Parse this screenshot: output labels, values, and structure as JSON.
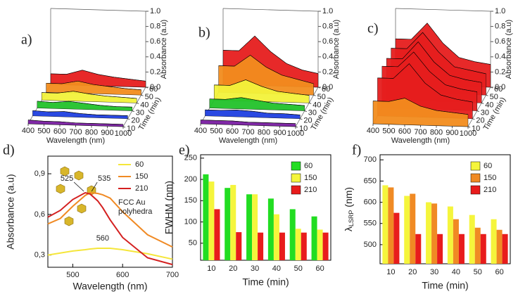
{
  "chart_data": [
    {
      "type": "waterfall3d",
      "panel_label": "a)",
      "xlabel": "Wavelength (nm)",
      "zlabel": "Time (min)",
      "ylabel": "Absorbance (a.u)",
      "x": [
        400,
        500,
        600,
        700,
        800,
        900,
        1000
      ],
      "xlim": [
        400,
        1000
      ],
      "xticks": [
        400,
        500,
        600,
        700,
        800,
        900,
        1000
      ],
      "zlim": [
        10,
        60
      ],
      "zticks": [
        10,
        20,
        30,
        40,
        50,
        60
      ],
      "ylim": [
        0,
        1
      ],
      "yticks": [
        {
          "value": 0,
          "label": "0.0"
        },
        {
          "value": 0.2,
          "label": "0.2"
        },
        {
          "value": 0.4,
          "label": "0.4"
        },
        {
          "value": 0.6,
          "label": "0.6"
        },
        {
          "value": 0.8,
          "label": "0.8"
        },
        {
          "value": 1,
          "label": "1.0"
        }
      ],
      "series": [
        {
          "color": "#7a1fa2",
          "values": [
            0.05,
            0.04,
            0.04,
            0.03,
            0.03,
            0.03,
            0.03
          ]
        },
        {
          "color": "#1f3fe0",
          "values": [
            0.07,
            0.06,
            0.07,
            0.05,
            0.04,
            0.04,
            0.04
          ]
        },
        {
          "color": "#22c22a",
          "values": [
            0.09,
            0.08,
            0.1,
            0.08,
            0.06,
            0.05,
            0.05
          ]
        },
        {
          "color": "#f2f23a",
          "values": [
            0.1,
            0.1,
            0.13,
            0.1,
            0.08,
            0.07,
            0.06
          ]
        },
        {
          "color": "#f28c1e",
          "values": [
            0.12,
            0.12,
            0.16,
            0.12,
            0.1,
            0.08,
            0.07
          ]
        },
        {
          "color": "#e61e1e",
          "values": [
            0.14,
            0.14,
            0.2,
            0.15,
            0.12,
            0.1,
            0.08
          ]
        }
      ]
    },
    {
      "type": "waterfall3d",
      "panel_label": "b)",
      "xlabel": "Wavelength (nm)",
      "zlabel": "Time (min)",
      "ylabel": "Absorbance (a.u)",
      "x": [
        400,
        500,
        600,
        700,
        800,
        900,
        1000
      ],
      "xlim": [
        400,
        1000
      ],
      "xticks": [
        400,
        500,
        600,
        700,
        800,
        900,
        1000
      ],
      "zlim": [
        10,
        60
      ],
      "zticks": [
        10,
        20,
        30,
        40,
        50,
        60
      ],
      "ylim": [
        0,
        1
      ],
      "yticks": [
        {
          "value": 0,
          "label": "0.0"
        },
        {
          "value": 0.2,
          "label": "0.2"
        },
        {
          "value": 0.4,
          "label": "0.4"
        },
        {
          "value": 0.6,
          "label": "0.6"
        },
        {
          "value": 0.8,
          "label": "0.8"
        },
        {
          "value": 1,
          "label": "1.0"
        }
      ],
      "series": [
        {
          "color": "#7a1fa2",
          "values": [
            0.05,
            0.05,
            0.05,
            0.04,
            0.04,
            0.04,
            0.04
          ]
        },
        {
          "color": "#1f3fe0",
          "values": [
            0.08,
            0.08,
            0.09,
            0.08,
            0.06,
            0.06,
            0.05
          ]
        },
        {
          "color": "#22c22a",
          "values": [
            0.12,
            0.12,
            0.15,
            0.12,
            0.09,
            0.08,
            0.07
          ]
        },
        {
          "color": "#f2f23a",
          "values": [
            0.2,
            0.2,
            0.28,
            0.2,
            0.14,
            0.12,
            0.1
          ]
        },
        {
          "color": "#f28c1e",
          "values": [
            0.35,
            0.35,
            0.5,
            0.35,
            0.25,
            0.2,
            0.15
          ]
        },
        {
          "color": "#e61e1e",
          "values": [
            0.45,
            0.45,
            0.65,
            0.45,
            0.3,
            0.22,
            0.18
          ]
        }
      ]
    },
    {
      "type": "waterfall3d",
      "panel_label": "c)",
      "xlabel": "Wavelength (nm)",
      "zlabel": "Time (min)",
      "ylabel": "Absorbance (a.u)",
      "x": [
        400,
        500,
        600,
        700,
        800,
        900,
        1000
      ],
      "xlim": [
        400,
        1000
      ],
      "xticks": [
        400,
        500,
        600,
        700,
        800,
        900,
        1000
      ],
      "zlim": [
        10,
        60
      ],
      "zticks": [
        10,
        20,
        30,
        40,
        50,
        60
      ],
      "ylim": [
        0,
        1
      ],
      "yticks": [
        {
          "value": 0,
          "label": "0.0"
        },
        {
          "value": 0.2,
          "label": "0.2"
        },
        {
          "value": 0.4,
          "label": "0.4"
        },
        {
          "value": 0.6,
          "label": "0.6"
        },
        {
          "value": 0.8,
          "label": "0.8"
        },
        {
          "value": 1,
          "label": "1.0"
        }
      ],
      "series": [
        {
          "color": "#f28c1e",
          "values": [
            0.3,
            0.3,
            0.35,
            0.25,
            0.2,
            0.18,
            0.16
          ]
        },
        {
          "color": "#e61e1e",
          "values": [
            0.5,
            0.5,
            0.7,
            0.45,
            0.3,
            0.25,
            0.22
          ]
        },
        {
          "color": "#e61e1e",
          "values": [
            0.55,
            0.55,
            0.75,
            0.5,
            0.33,
            0.28,
            0.25
          ]
        },
        {
          "color": "#e61e1e",
          "values": [
            0.55,
            0.55,
            0.78,
            0.52,
            0.35,
            0.3,
            0.27
          ]
        },
        {
          "color": "#e61e1e",
          "values": [
            0.58,
            0.58,
            0.8,
            0.55,
            0.36,
            0.32,
            0.28
          ]
        },
        {
          "color": "#e61e1e",
          "values": [
            0.6,
            0.6,
            0.82,
            0.56,
            0.38,
            0.33,
            0.3
          ]
        }
      ]
    },
    {
      "type": "line",
      "panel_label": "d)",
      "xlabel": "Wavelength (nm)",
      "ylabel": "Absorbance (a.u)",
      "x": [
        450,
        475,
        500,
        525,
        535,
        550,
        560,
        575,
        600,
        650,
        700
      ],
      "xlim": [
        450,
        700
      ],
      "xticks": [
        500,
        600,
        700
      ],
      "ylim": [
        0.21,
        1.03
      ],
      "yticks": [
        {
          "value": 0.3,
          "label": "0,3"
        },
        {
          "value": 0.6,
          "label": "0,6"
        },
        {
          "value": 0.9,
          "label": "0,9"
        }
      ],
      "annotations": [
        "525",
        "535",
        "560"
      ],
      "note": [
        "FCC Au",
        "polyhedra"
      ],
      "series": [
        {
          "name": "60",
          "color": "#f5e63a",
          "values": [
            0.3,
            0.315,
            0.33,
            0.34,
            0.345,
            0.35,
            0.35,
            0.35,
            0.34,
            0.31,
            0.27
          ]
        },
        {
          "name": "150",
          "color": "#f08a24",
          "values": [
            0.53,
            0.57,
            0.66,
            0.74,
            0.76,
            0.755,
            0.745,
            0.72,
            0.62,
            0.45,
            0.36
          ]
        },
        {
          "name": "210",
          "color": "#d42020",
          "values": [
            0.58,
            0.63,
            0.71,
            0.76,
            0.75,
            0.7,
            0.65,
            0.56,
            0.43,
            0.28,
            0.23
          ]
        }
      ]
    },
    {
      "type": "bar",
      "panel_label": "e)",
      "xlabel": "Time (min)",
      "ylabel": "FWHM (nm)",
      "categories": [
        "10",
        "20",
        "30",
        "40",
        "50",
        "60"
      ],
      "ylim": [
        10,
        258
      ],
      "yticks": [
        50,
        100,
        150,
        200,
        250
      ],
      "series": [
        {
          "name": "60",
          "color": "#22dd22",
          "values": [
            212,
            180,
            165,
            155,
            130,
            113
          ]
        },
        {
          "name": "150",
          "color": "#f5f53c",
          "values": [
            195,
            187,
            165,
            118,
            84,
            82
          ]
        },
        {
          "name": "210",
          "color": "#e81c1c",
          "values": [
            130,
            76,
            75,
            75,
            75,
            75
          ]
        }
      ]
    },
    {
      "type": "bar",
      "panel_label": "f)",
      "xlabel": "Time (min)",
      "ylabel": {
        "symbol": "λ",
        "subscript": "LSRP",
        "unit": " (nm)"
      },
      "categories": [
        "10",
        "20",
        "30",
        "40",
        "50",
        "60"
      ],
      "ylim": [
        455,
        712
      ],
      "yticks": [
        500,
        550,
        600,
        650,
        700
      ],
      "series": [
        {
          "name": "60",
          "color": "#f5f53c",
          "values": [
            640,
            615,
            600,
            590,
            570,
            560
          ]
        },
        {
          "name": "150",
          "color": "#f08a24",
          "values": [
            635,
            620,
            597,
            560,
            540,
            535
          ]
        },
        {
          "name": "210",
          "color": "#e81c1c",
          "values": [
            575,
            525,
            525,
            525,
            525,
            525
          ]
        }
      ]
    }
  ]
}
